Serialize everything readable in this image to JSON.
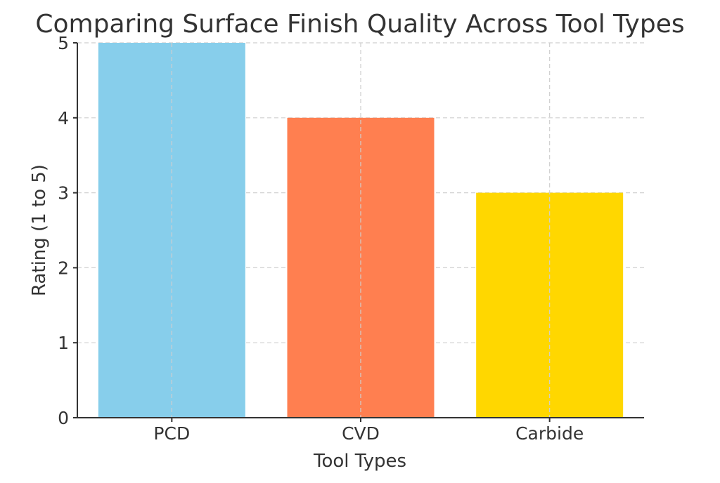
{
  "chart_data": {
    "type": "bar",
    "title": "Comparing Surface Finish Quality Across Tool Types",
    "xlabel": "Tool Types",
    "ylabel": "Rating (1 to 5)",
    "categories": [
      "PCD",
      "CVD",
      "Carbide"
    ],
    "values": [
      5,
      4,
      3
    ],
    "colors": [
      "#87CEEB",
      "#FF7F50",
      "#FFD700"
    ],
    "ylim": [
      0,
      5
    ],
    "yticks": [
      0,
      1,
      2,
      3,
      4,
      5
    ],
    "grid": true,
    "legend": "none"
  }
}
